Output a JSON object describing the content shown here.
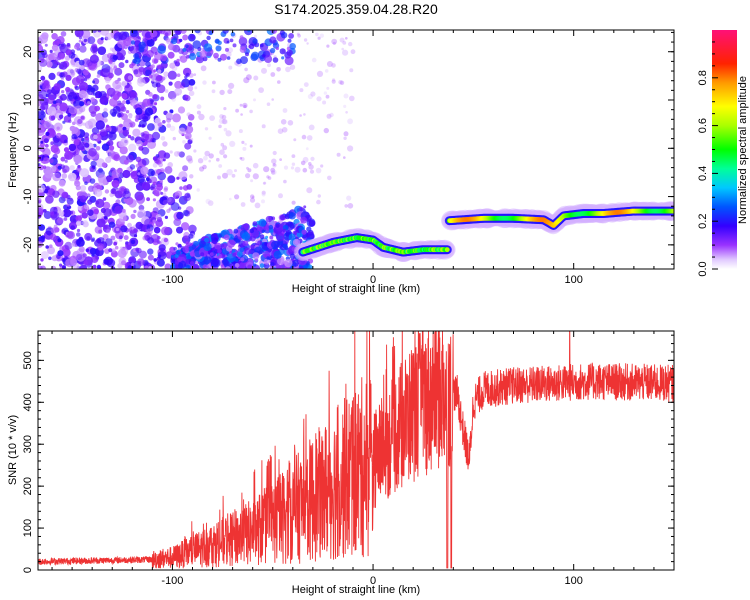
{
  "title": "S174.2025.359.04.28.R20",
  "chart_data": [
    {
      "type": "heatmap",
      "name": "spectrogram",
      "xlabel": "Height of straight line (km)",
      "ylabel": "Frequency (Hz)",
      "xlim": [
        -167,
        150
      ],
      "ylim": [
        -25,
        24.5
      ],
      "xticks": [
        -100,
        0,
        100
      ],
      "yticks": [
        -20,
        -10,
        0,
        10,
        20
      ],
      "colorbar": {
        "label": "Normalized spectral amplitude",
        "range": [
          0,
          1
        ],
        "ticks": [
          0.0,
          0.2,
          0.4,
          0.6,
          0.8
        ]
      },
      "noise_region": {
        "x": [
          -167,
          -105
        ],
        "y": [
          -25,
          24.5
        ]
      },
      "left_upper_feature": {
        "x": [
          -120,
          -40
        ],
        "y": [
          18,
          24.5
        ]
      },
      "rising_band": [
        {
          "x": -100,
          "y": -24
        },
        {
          "x": -85,
          "y": -21
        },
        {
          "x": -70,
          "y": -19
        },
        {
          "x": -55,
          "y": -17
        },
        {
          "x": -40,
          "y": -15
        },
        {
          "x": -30,
          "y": -13
        }
      ],
      "tone_track": [
        {
          "x": -35,
          "y": -21.5
        },
        {
          "x": -20,
          "y": -19.5
        },
        {
          "x": -8,
          "y": -18.5
        },
        {
          "x": 0,
          "y": -19
        },
        {
          "x": 5,
          "y": -20.5
        },
        {
          "x": 15,
          "y": -21.5
        },
        {
          "x": 25,
          "y": -21
        },
        {
          "x": 37,
          "y": -21
        },
        {
          "x": 38,
          "y": -15
        },
        {
          "x": 55,
          "y": -14.5
        },
        {
          "x": 70,
          "y": -14.5
        },
        {
          "x": 85,
          "y": -14.8
        },
        {
          "x": 90,
          "y": -16
        },
        {
          "x": 95,
          "y": -14
        },
        {
          "x": 105,
          "y": -13.5
        },
        {
          "x": 115,
          "y": -13.5
        },
        {
          "x": 130,
          "y": -13
        },
        {
          "x": 150,
          "y": -13
        }
      ]
    },
    {
      "type": "line",
      "name": "snr",
      "xlabel": "Height of straight line (km)",
      "ylabel": "SNR (10 * v/v)",
      "xlim": [
        -167,
        150
      ],
      "ylim": [
        0,
        570
      ],
      "xticks": [
        -100,
        0,
        100
      ],
      "yticks": [
        0,
        100,
        200,
        300,
        400,
        500
      ],
      "color": "#ee3333",
      "trend": [
        {
          "x": -167,
          "y": 20
        },
        {
          "x": -110,
          "y": 25
        },
        {
          "x": -100,
          "y": 30
        },
        {
          "x": -80,
          "y": 60
        },
        {
          "x": -60,
          "y": 90
        },
        {
          "x": -40,
          "y": 140
        },
        {
          "x": -20,
          "y": 200
        },
        {
          "x": 0,
          "y": 260
        },
        {
          "x": 10,
          "y": 320
        },
        {
          "x": 20,
          "y": 380
        },
        {
          "x": 30,
          "y": 420
        },
        {
          "x": 37,
          "y": 430
        },
        {
          "x": 42,
          "y": 420
        },
        {
          "x": 45,
          "y": 330
        },
        {
          "x": 48,
          "y": 260
        },
        {
          "x": 50,
          "y": 400
        },
        {
          "x": 55,
          "y": 430
        },
        {
          "x": 70,
          "y": 440
        },
        {
          "x": 90,
          "y": 445
        },
        {
          "x": 110,
          "y": 450
        },
        {
          "x": 150,
          "y": 445
        }
      ],
      "dips": [
        {
          "x": 37,
          "y": 5
        },
        {
          "x": 39,
          "y": 5
        }
      ],
      "peak": {
        "x": 98,
        "y": 570
      }
    }
  ]
}
